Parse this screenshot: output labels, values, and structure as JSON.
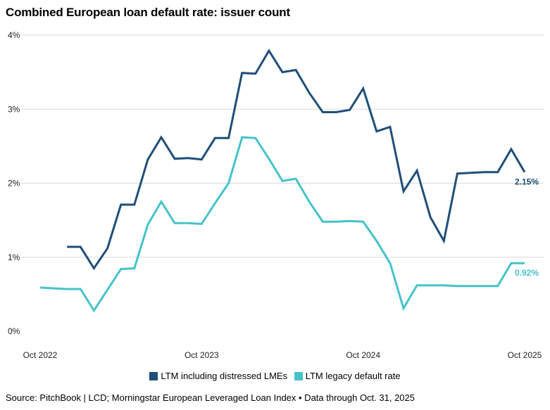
{
  "title": "Combined European loan default rate: issuer count",
  "source": "Source: PitchBook | LCD; Morningstar European Leveraged Loan Index • Data through Oct. 31, 2025",
  "colors": {
    "series1": "#1f4e79",
    "series2": "#45c3c9",
    "grid": "#d9d9d9"
  },
  "chart_data": {
    "type": "line",
    "title": "Combined European loan default rate: issuer count",
    "xlabel": "",
    "ylabel": "",
    "ylim": [
      0,
      4
    ],
    "yticks": [
      "0%",
      "1%",
      "2%",
      "3%",
      "4%"
    ],
    "yticks_values": [
      0,
      1,
      2,
      3,
      4
    ],
    "xticks": [
      {
        "index": 0,
        "label": "Oct 2022"
      },
      {
        "index": 12,
        "label": "Oct 2023"
      },
      {
        "index": 24,
        "label": "Oct 2024"
      },
      {
        "index": 36,
        "label": "Oct 2025"
      }
    ],
    "x": [
      "Oct 2022",
      "Nov 2022",
      "Dec 2022",
      "Jan 2023",
      "Feb 2023",
      "Mar 2023",
      "Apr 2023",
      "May 2023",
      "Jun 2023",
      "Jul 2023",
      "Aug 2023",
      "Sep 2023",
      "Oct 2023",
      "Nov 2023",
      "Dec 2023",
      "Jan 2024",
      "Feb 2024",
      "Mar 2024",
      "Apr 2024",
      "May 2024",
      "Jun 2024",
      "Jul 2024",
      "Aug 2024",
      "Sep 2024",
      "Oct 2024",
      "Nov 2024",
      "Dec 2024",
      "Jan 2025",
      "Feb 2025",
      "Mar 2025",
      "Apr 2025",
      "May 2025",
      "Jun 2025",
      "Jul 2025",
      "Aug 2025",
      "Sep 2025",
      "Oct 2025"
    ],
    "series": [
      {
        "name": "LTM including distressed LMEs",
        "color": "#1f4e79",
        "values": [
          null,
          null,
          1.14,
          1.14,
          0.85,
          1.12,
          1.71,
          1.71,
          2.32,
          2.62,
          2.33,
          2.34,
          2.32,
          2.61,
          2.61,
          3.49,
          3.48,
          3.79,
          3.5,
          3.53,
          3.22,
          2.96,
          2.96,
          2.99,
          3.28,
          2.7,
          2.76,
          1.89,
          2.17,
          1.54,
          1.22,
          2.13,
          2.14,
          2.15,
          2.15,
          2.46,
          2.15
        ],
        "end_label": "2.15%"
      },
      {
        "name": "LTM legacy default rate",
        "color": "#45c3c9",
        "values": [
          0.59,
          0.58,
          0.57,
          0.57,
          0.28,
          0.56,
          0.84,
          0.85,
          1.44,
          1.75,
          1.46,
          1.46,
          1.45,
          1.73,
          2.0,
          2.62,
          2.61,
          2.33,
          2.03,
          2.06,
          1.75,
          1.48,
          1.48,
          1.49,
          1.48,
          1.22,
          0.92,
          0.31,
          0.62,
          0.62,
          0.62,
          0.61,
          0.61,
          0.61,
          0.61,
          0.92,
          0.92
        ],
        "end_label": "0.92%"
      }
    ],
    "legend": [
      "LTM including distressed LMEs",
      "LTM legacy default rate"
    ],
    "legend_position": "bottom",
    "grid": "horizontal"
  }
}
